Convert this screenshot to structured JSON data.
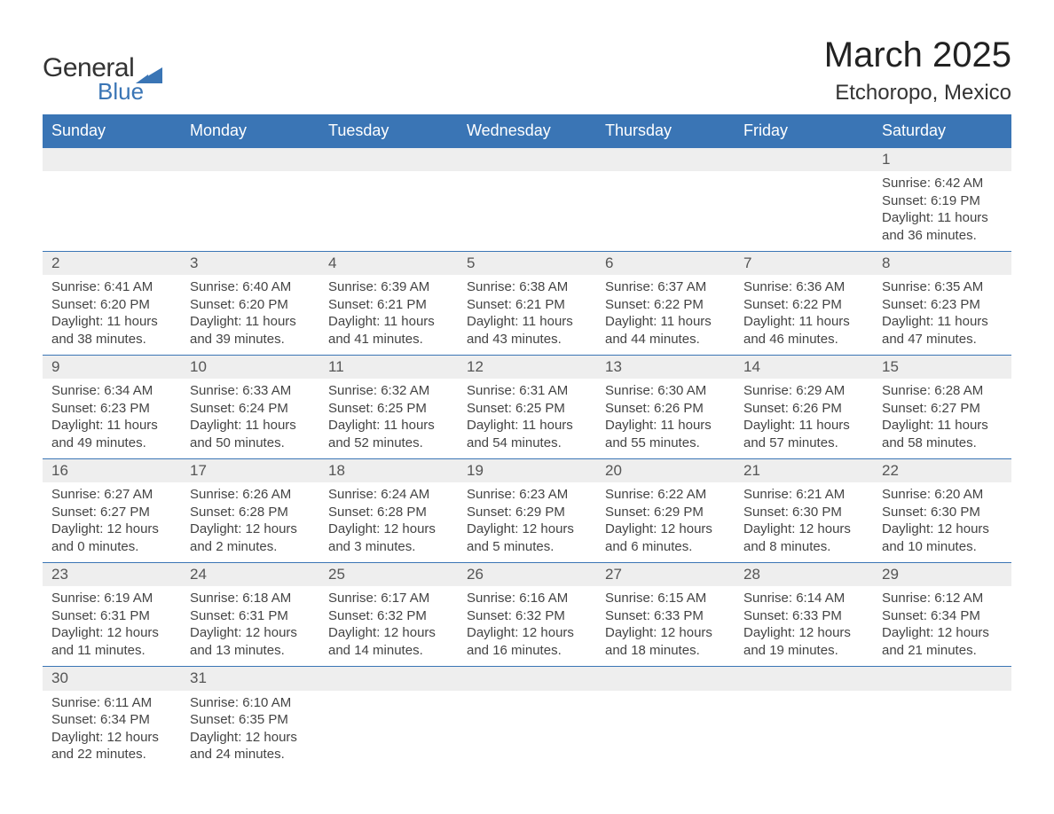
{
  "brand": {
    "word1": "General",
    "word2": "Blue"
  },
  "title": "March 2025",
  "location": "Etchoropo, Mexico",
  "colors": {
    "header_bg": "#3a75b5",
    "header_text": "#ffffff",
    "daynum_bg": "#eeeeee",
    "row_border": "#3a75b5",
    "body_text": "#444444",
    "logo_blue": "#3a75b5"
  },
  "fonts": {
    "title_size_pt": 30,
    "location_size_pt": 18,
    "header_size_pt": 14,
    "cell_size_pt": 11
  },
  "layout": {
    "columns": 7,
    "weeks": 6
  },
  "day_headers": [
    "Sunday",
    "Monday",
    "Tuesday",
    "Wednesday",
    "Thursday",
    "Friday",
    "Saturday"
  ],
  "weeks": [
    [
      null,
      null,
      null,
      null,
      null,
      null,
      {
        "n": "1",
        "sunrise": "6:42 AM",
        "sunset": "6:19 PM",
        "daylight": "11 hours and 36 minutes."
      }
    ],
    [
      {
        "n": "2",
        "sunrise": "6:41 AM",
        "sunset": "6:20 PM",
        "daylight": "11 hours and 38 minutes."
      },
      {
        "n": "3",
        "sunrise": "6:40 AM",
        "sunset": "6:20 PM",
        "daylight": "11 hours and 39 minutes."
      },
      {
        "n": "4",
        "sunrise": "6:39 AM",
        "sunset": "6:21 PM",
        "daylight": "11 hours and 41 minutes."
      },
      {
        "n": "5",
        "sunrise": "6:38 AM",
        "sunset": "6:21 PM",
        "daylight": "11 hours and 43 minutes."
      },
      {
        "n": "6",
        "sunrise": "6:37 AM",
        "sunset": "6:22 PM",
        "daylight": "11 hours and 44 minutes."
      },
      {
        "n": "7",
        "sunrise": "6:36 AM",
        "sunset": "6:22 PM",
        "daylight": "11 hours and 46 minutes."
      },
      {
        "n": "8",
        "sunrise": "6:35 AM",
        "sunset": "6:23 PM",
        "daylight": "11 hours and 47 minutes."
      }
    ],
    [
      {
        "n": "9",
        "sunrise": "6:34 AM",
        "sunset": "6:23 PM",
        "daylight": "11 hours and 49 minutes."
      },
      {
        "n": "10",
        "sunrise": "6:33 AM",
        "sunset": "6:24 PM",
        "daylight": "11 hours and 50 minutes."
      },
      {
        "n": "11",
        "sunrise": "6:32 AM",
        "sunset": "6:25 PM",
        "daylight": "11 hours and 52 minutes."
      },
      {
        "n": "12",
        "sunrise": "6:31 AM",
        "sunset": "6:25 PM",
        "daylight": "11 hours and 54 minutes."
      },
      {
        "n": "13",
        "sunrise": "6:30 AM",
        "sunset": "6:26 PM",
        "daylight": "11 hours and 55 minutes."
      },
      {
        "n": "14",
        "sunrise": "6:29 AM",
        "sunset": "6:26 PM",
        "daylight": "11 hours and 57 minutes."
      },
      {
        "n": "15",
        "sunrise": "6:28 AM",
        "sunset": "6:27 PM",
        "daylight": "11 hours and 58 minutes."
      }
    ],
    [
      {
        "n": "16",
        "sunrise": "6:27 AM",
        "sunset": "6:27 PM",
        "daylight": "12 hours and 0 minutes."
      },
      {
        "n": "17",
        "sunrise": "6:26 AM",
        "sunset": "6:28 PM",
        "daylight": "12 hours and 2 minutes."
      },
      {
        "n": "18",
        "sunrise": "6:24 AM",
        "sunset": "6:28 PM",
        "daylight": "12 hours and 3 minutes."
      },
      {
        "n": "19",
        "sunrise": "6:23 AM",
        "sunset": "6:29 PM",
        "daylight": "12 hours and 5 minutes."
      },
      {
        "n": "20",
        "sunrise": "6:22 AM",
        "sunset": "6:29 PM",
        "daylight": "12 hours and 6 minutes."
      },
      {
        "n": "21",
        "sunrise": "6:21 AM",
        "sunset": "6:30 PM",
        "daylight": "12 hours and 8 minutes."
      },
      {
        "n": "22",
        "sunrise": "6:20 AM",
        "sunset": "6:30 PM",
        "daylight": "12 hours and 10 minutes."
      }
    ],
    [
      {
        "n": "23",
        "sunrise": "6:19 AM",
        "sunset": "6:31 PM",
        "daylight": "12 hours and 11 minutes."
      },
      {
        "n": "24",
        "sunrise": "6:18 AM",
        "sunset": "6:31 PM",
        "daylight": "12 hours and 13 minutes."
      },
      {
        "n": "25",
        "sunrise": "6:17 AM",
        "sunset": "6:32 PM",
        "daylight": "12 hours and 14 minutes."
      },
      {
        "n": "26",
        "sunrise": "6:16 AM",
        "sunset": "6:32 PM",
        "daylight": "12 hours and 16 minutes."
      },
      {
        "n": "27",
        "sunrise": "6:15 AM",
        "sunset": "6:33 PM",
        "daylight": "12 hours and 18 minutes."
      },
      {
        "n": "28",
        "sunrise": "6:14 AM",
        "sunset": "6:33 PM",
        "daylight": "12 hours and 19 minutes."
      },
      {
        "n": "29",
        "sunrise": "6:12 AM",
        "sunset": "6:34 PM",
        "daylight": "12 hours and 21 minutes."
      }
    ],
    [
      {
        "n": "30",
        "sunrise": "6:11 AM",
        "sunset": "6:34 PM",
        "daylight": "12 hours and 22 minutes."
      },
      {
        "n": "31",
        "sunrise": "6:10 AM",
        "sunset": "6:35 PM",
        "daylight": "12 hours and 24 minutes."
      },
      null,
      null,
      null,
      null,
      null
    ]
  ],
  "labels": {
    "sunrise": "Sunrise: ",
    "sunset": "Sunset: ",
    "daylight": "Daylight: "
  }
}
